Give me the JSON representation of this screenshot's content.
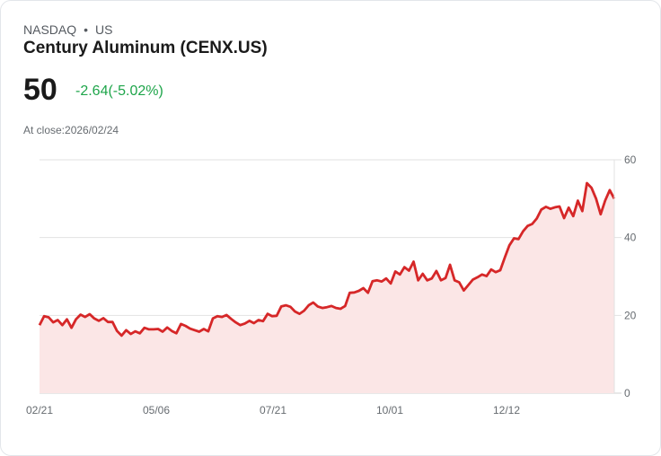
{
  "header": {
    "exchange": "NASDAQ",
    "separator": "•",
    "market": "US",
    "title": "Century Aluminum (CENX.US)",
    "price": "50",
    "change": "-2.64(-5.02%)",
    "close_label": "At close:2026/02/24"
  },
  "colors": {
    "line": "#d62728",
    "fill": "#fbe6e6",
    "change": "#1ea54a",
    "grid": "#e2e2e2"
  },
  "chart_data": {
    "type": "area",
    "title": "Century Aluminum (CENX.US)",
    "xlabel": "",
    "ylabel": "",
    "ylim": [
      0,
      60
    ],
    "yticks": [
      "60",
      "40",
      "20",
      "0"
    ],
    "y_axis_position": "right",
    "grid": true,
    "xticks": [
      "02/21",
      "05/06",
      "07/21",
      "10/01",
      "12/12"
    ],
    "values": [
      17.5,
      19.8,
      19.5,
      18.2,
      18.8,
      17.5,
      19.0,
      16.8,
      19.0,
      20.2,
      19.6,
      20.3,
      19.2,
      18.6,
      19.3,
      18.3,
      18.3,
      16.0,
      14.8,
      16.2,
      15.2,
      15.9,
      15.4,
      16.8,
      16.4,
      16.4,
      16.5,
      15.8,
      16.9,
      16.0,
      15.4,
      17.8,
      17.3,
      16.6,
      16.2,
      15.8,
      16.5,
      15.9,
      19.2,
      19.8,
      19.6,
      20.1,
      19.1,
      18.2,
      17.5,
      17.9,
      18.6,
      18.0,
      18.8,
      18.5,
      20.4,
      19.8,
      19.9,
      22.3,
      22.6,
      22.2,
      21.0,
      20.4,
      21.2,
      22.6,
      23.3,
      22.3,
      21.9,
      22.1,
      22.4,
      21.9,
      21.7,
      22.4,
      25.8,
      25.9,
      26.3,
      27.0,
      25.8,
      28.8,
      29.0,
      28.7,
      29.5,
      28.2,
      31.3,
      30.5,
      32.4,
      31.5,
      33.8,
      29.0,
      30.7,
      29.0,
      29.5,
      31.4,
      29.0,
      29.6,
      33.0,
      29.0,
      28.5,
      26.4,
      27.8,
      29.2,
      29.8,
      30.5,
      30.1,
      31.8,
      31.1,
      31.6,
      34.9,
      38.0,
      39.8,
      39.6,
      41.6,
      43.0,
      43.5,
      44.9,
      47.2,
      47.9,
      47.4,
      47.8,
      48.0,
      45.0,
      47.7,
      45.5,
      49.5,
      46.8,
      54.0,
      52.8,
      50.0,
      46.0,
      49.5,
      52.2,
      50.0
    ],
    "line_color": "#d62728",
    "fill_color": "#fbe6e6"
  }
}
